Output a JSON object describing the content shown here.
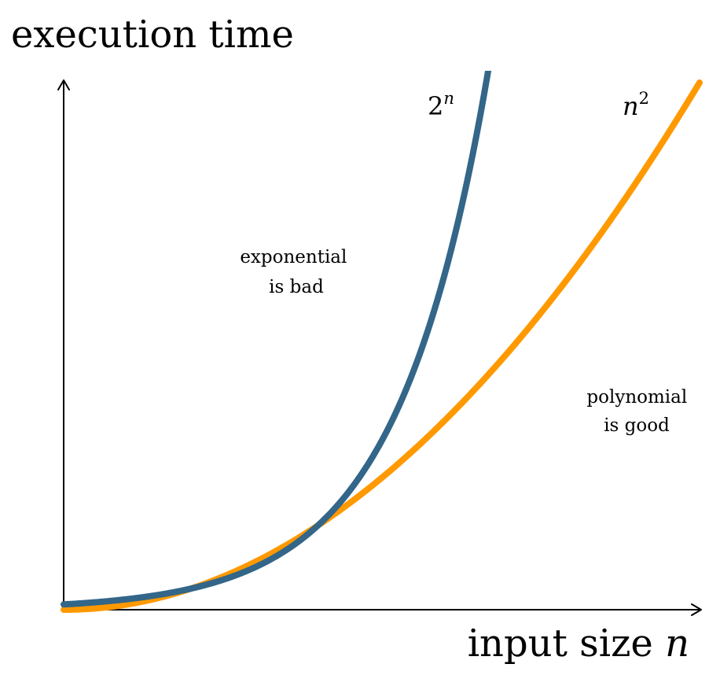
{
  "chart_data": {
    "type": "line",
    "ylabel": "execution time",
    "xlabel_prefix": "input size ",
    "xlabel_var": "n",
    "grid": false,
    "xlim": [
      0,
      10
    ],
    "ylim": [
      0,
      100
    ],
    "series": [
      {
        "name_base": "2",
        "name_sup": "n",
        "color": "#336688",
        "x": [
          0,
          0.5,
          1,
          1.5,
          2,
          2.5,
          3,
          3.5,
          4,
          4.5,
          5,
          5.5,
          6,
          6.5,
          6.64
        ],
        "values": [
          1,
          1.41,
          2,
          2.83,
          4,
          5.66,
          8,
          11.31,
          16,
          22.63,
          32,
          45.25,
          64,
          90.51,
          100
        ]
      },
      {
        "name_base": "n",
        "name_sup": "2",
        "color": "#ff9900",
        "x": [
          0,
          1,
          2,
          3,
          4,
          5,
          6,
          7,
          8,
          9,
          10
        ],
        "values": [
          0,
          1,
          4,
          9,
          16,
          25,
          36,
          49,
          64,
          81,
          100
        ]
      }
    ],
    "annotations": [
      {
        "lines": [
          "exponential",
          "is bad"
        ]
      },
      {
        "lines": [
          "polynomial",
          "is good"
        ]
      }
    ]
  }
}
